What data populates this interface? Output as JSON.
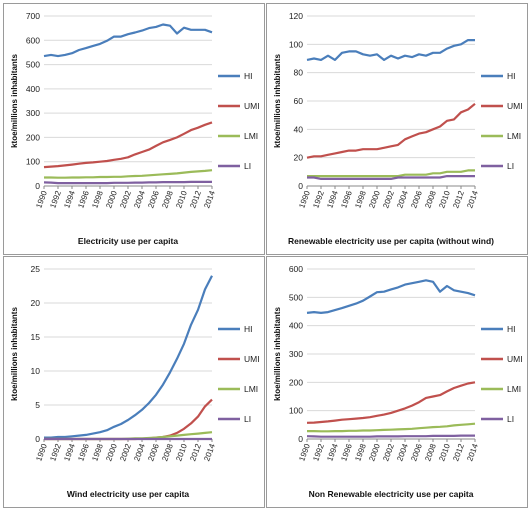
{
  "figure": {
    "colors": {
      "HI": "#4a7ebb",
      "UMI": "#c0504d",
      "LMI": "#9bbb59",
      "LI": "#7f60a0"
    }
  },
  "chart_data": [
    {
      "type": "line",
      "title": "Electricity use per capita",
      "xlabel": "",
      "ylabel": "ktoe/millions inhabitants",
      "ylim": [
        0,
        700
      ],
      "yticks": [
        0,
        100,
        200,
        300,
        400,
        500,
        600,
        700
      ],
      "xlim": [
        1990,
        2014
      ],
      "xticks": [
        "1990",
        "1992",
        "1994",
        "1996",
        "1998",
        "2000",
        "2002",
        "2004",
        "2006",
        "2008",
        "2010",
        "2012",
        "2014"
      ],
      "grid": "horizontal",
      "legend": "right",
      "x": [
        1990,
        1991,
        1992,
        1993,
        1994,
        1995,
        1996,
        1997,
        1998,
        1999,
        2000,
        2001,
        2002,
        2003,
        2004,
        2005,
        2006,
        2007,
        2008,
        2009,
        2010,
        2011,
        2012,
        2013,
        2014
      ],
      "series": [
        {
          "name": "HI",
          "values": [
            535,
            540,
            535,
            540,
            547,
            560,
            568,
            577,
            585,
            598,
            615,
            615,
            625,
            632,
            640,
            650,
            655,
            665,
            660,
            628,
            652,
            643,
            643,
            643,
            633
          ]
        },
        {
          "name": "UMI",
          "values": [
            78,
            80,
            82,
            85,
            88,
            92,
            95,
            97,
            100,
            103,
            108,
            112,
            118,
            130,
            140,
            150,
            165,
            180,
            190,
            200,
            215,
            230,
            240,
            252,
            262
          ]
        },
        {
          "name": "LMI",
          "values": [
            35,
            35,
            34,
            34,
            35,
            35,
            36,
            36,
            37,
            37,
            38,
            38,
            40,
            41,
            42,
            44,
            46,
            48,
            50,
            52,
            55,
            58,
            60,
            62,
            65
          ]
        },
        {
          "name": "LI",
          "values": [
            15,
            14,
            12,
            12,
            12,
            12,
            12,
            12,
            12,
            12,
            13,
            13,
            13,
            14,
            14,
            15,
            15,
            16,
            16,
            16,
            16,
            17,
            17,
            17,
            17
          ]
        }
      ]
    },
    {
      "type": "line",
      "title": "Renewable electricity use per capita (without wind)",
      "xlabel": "",
      "ylabel": "ktoe/millions inhabitants",
      "ylim": [
        0,
        120
      ],
      "yticks": [
        0,
        20,
        40,
        60,
        80,
        100,
        120
      ],
      "xlim": [
        1990,
        2014
      ],
      "xticks": [
        "1990",
        "1992",
        "1994",
        "1996",
        "1998",
        "2000",
        "2002",
        "2004",
        "2006",
        "2008",
        "2010",
        "2012",
        "2014"
      ],
      "grid": "horizontal",
      "legend": "right",
      "x": [
        1990,
        1991,
        1992,
        1993,
        1994,
        1995,
        1996,
        1997,
        1998,
        1999,
        2000,
        2001,
        2002,
        2003,
        2004,
        2005,
        2006,
        2007,
        2008,
        2009,
        2010,
        2011,
        2012,
        2013,
        2014
      ],
      "series": [
        {
          "name": "HI",
          "values": [
            89,
            90,
            89,
            92,
            89,
            94,
            95,
            95,
            93,
            92,
            93,
            89,
            92,
            90,
            92,
            91,
            93,
            92,
            94,
            94,
            97,
            99,
            100,
            103,
            103
          ]
        },
        {
          "name": "UMI",
          "values": [
            20,
            21,
            21,
            22,
            23,
            24,
            25,
            25,
            26,
            26,
            26,
            27,
            28,
            29,
            33,
            35,
            37,
            38,
            40,
            42,
            46,
            47,
            52,
            54,
            58
          ]
        },
        {
          "name": "LMI",
          "values": [
            7,
            7,
            7,
            7,
            7,
            7,
            7,
            7,
            7,
            7,
            7,
            7,
            7,
            7,
            8,
            8,
            8,
            8,
            9,
            9,
            10,
            10,
            10,
            11,
            11
          ]
        },
        {
          "name": "LI",
          "values": [
            6,
            6,
            5,
            5,
            5,
            5,
            5,
            5,
            5,
            5,
            5,
            5,
            5,
            6,
            6,
            6,
            6,
            6,
            6,
            6,
            7,
            7,
            7,
            7,
            7
          ]
        }
      ]
    },
    {
      "type": "line",
      "title": "Wind electricity use per capita",
      "xlabel": "",
      "ylabel": "ktoe/millions inhabitants",
      "ylim": [
        0,
        25
      ],
      "yticks": [
        0,
        5,
        10,
        15,
        20,
        25
      ],
      "xlim": [
        1990,
        2014
      ],
      "xticks": [
        "1990",
        "1992",
        "1994",
        "1996",
        "1998",
        "2000",
        "2002",
        "2004",
        "2006",
        "2008",
        "2010",
        "2012",
        "2014"
      ],
      "grid": "horizontal",
      "legend": "right",
      "x": [
        1990,
        1991,
        1992,
        1993,
        1994,
        1995,
        1996,
        1997,
        1998,
        1999,
        2000,
        2001,
        2002,
        2003,
        2004,
        2005,
        2006,
        2007,
        2008,
        2009,
        2010,
        2011,
        2012,
        2013,
        2014
      ],
      "series": [
        {
          "name": "HI",
          "values": [
            0.2,
            0.2,
            0.3,
            0.3,
            0.4,
            0.5,
            0.6,
            0.8,
            1.0,
            1.3,
            1.8,
            2.2,
            2.8,
            3.5,
            4.3,
            5.3,
            6.5,
            8.0,
            9.8,
            11.8,
            14.0,
            16.8,
            19.0,
            22.0,
            24.0
          ]
        },
        {
          "name": "UMI",
          "values": [
            0,
            0,
            0,
            0,
            0,
            0,
            0,
            0,
            0,
            0,
            0,
            0,
            0,
            0,
            0.05,
            0.1,
            0.2,
            0.3,
            0.5,
            0.9,
            1.5,
            2.3,
            3.3,
            4.8,
            5.8
          ]
        },
        {
          "name": "LMI",
          "values": [
            0,
            0,
            0,
            0,
            0,
            0,
            0,
            0,
            0,
            0,
            0,
            0,
            0.05,
            0.1,
            0.1,
            0.15,
            0.2,
            0.3,
            0.4,
            0.5,
            0.6,
            0.7,
            0.8,
            0.9,
            1.0
          ]
        },
        {
          "name": "LI",
          "values": [
            0,
            0,
            0,
            0,
            0,
            0,
            0,
            0,
            0,
            0,
            0,
            0,
            0,
            0,
            0,
            0,
            0,
            0,
            0,
            0,
            0,
            0,
            0,
            0,
            0
          ]
        }
      ]
    },
    {
      "type": "line",
      "title": "Non Renewable electricity use per capita",
      "xlabel": "",
      "ylabel": "ktoe/millions inhabitants",
      "ylim": [
        0,
        600
      ],
      "yticks": [
        0,
        100,
        200,
        300,
        400,
        500,
        600
      ],
      "xlim": [
        1990,
        2014
      ],
      "xticks": [
        "1990",
        "1992",
        "1994",
        "1996",
        "1998",
        "2000",
        "2002",
        "2004",
        "2006",
        "2008",
        "2010",
        "2012",
        "2014"
      ],
      "grid": "horizontal",
      "legend": "right",
      "x": [
        1990,
        1991,
        1992,
        1993,
        1994,
        1995,
        1996,
        1997,
        1998,
        1999,
        2000,
        2001,
        2002,
        2003,
        2004,
        2005,
        2006,
        2007,
        2008,
        2009,
        2010,
        2011,
        2012,
        2013,
        2014
      ],
      "series": [
        {
          "name": "HI",
          "values": [
            445,
            448,
            445,
            448,
            455,
            462,
            470,
            478,
            488,
            503,
            518,
            520,
            528,
            535,
            545,
            550,
            555,
            560,
            555,
            520,
            540,
            525,
            520,
            515,
            507
          ]
        },
        {
          "name": "UMI",
          "values": [
            57,
            58,
            60,
            62,
            65,
            68,
            70,
            72,
            74,
            77,
            82,
            86,
            92,
            100,
            108,
            118,
            130,
            145,
            150,
            155,
            168,
            180,
            188,
            196,
            200
          ]
        },
        {
          "name": "LMI",
          "values": [
            28,
            28,
            27,
            27,
            28,
            28,
            29,
            29,
            30,
            30,
            31,
            32,
            33,
            34,
            35,
            36,
            38,
            40,
            42,
            43,
            45,
            48,
            50,
            52,
            54
          ]
        },
        {
          "name": "LI",
          "values": [
            10,
            9,
            8,
            8,
            8,
            8,
            8,
            8,
            8,
            8,
            9,
            9,
            9,
            9,
            10,
            10,
            10,
            10,
            11,
            11,
            11,
            11,
            12,
            12,
            12
          ]
        }
      ]
    }
  ]
}
